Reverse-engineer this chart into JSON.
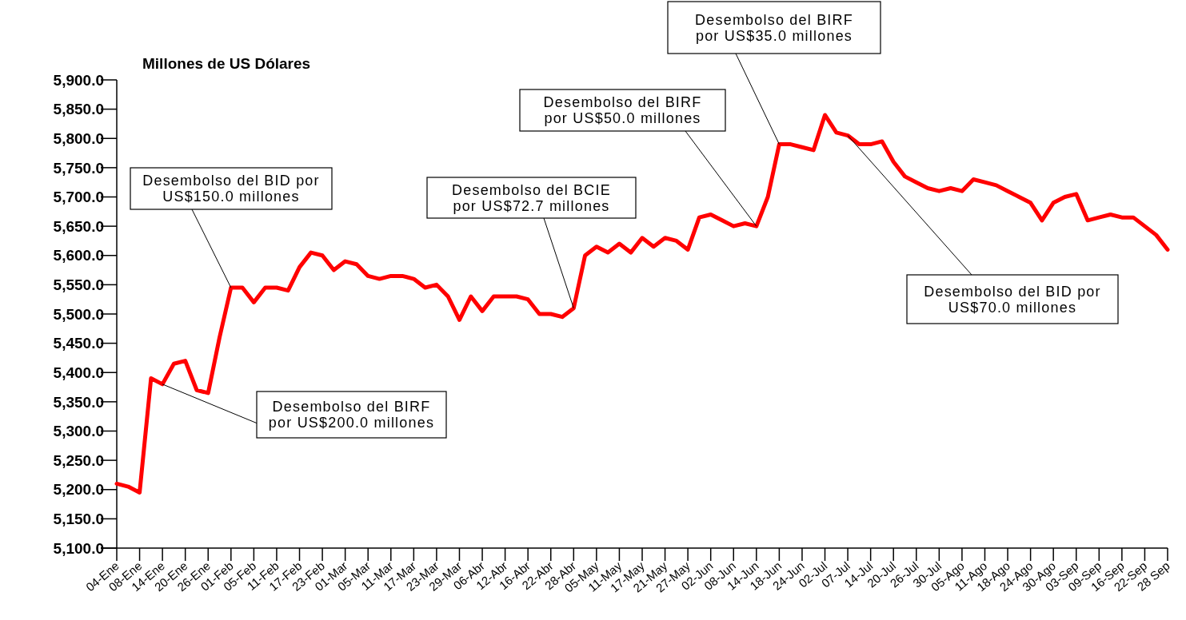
{
  "chart_data": {
    "type": "line",
    "ylabel": "Millones de US Dólares",
    "categories": [
      "04-Ene",
      null,
      "08-Ene",
      null,
      "14-Ene",
      null,
      "20-Ene",
      null,
      "26-Ene",
      null,
      "01-Feb",
      null,
      "05-Feb",
      null,
      "11-Feb",
      null,
      "17-Feb",
      null,
      "23-Feb",
      null,
      "01-Mar",
      null,
      "05-Mar",
      null,
      "11-Mar",
      null,
      "17-Mar",
      null,
      "23-Mar",
      null,
      "29-Mar",
      null,
      "06-Abr",
      null,
      "12-Abr",
      null,
      "16-Abr",
      null,
      "22-Abr",
      null,
      "28-Abr",
      null,
      "05-May",
      null,
      "11-May",
      null,
      "17-May",
      null,
      "21-May",
      null,
      "27-May",
      null,
      "02-Jun",
      null,
      "08-Jun",
      null,
      "14-Jun",
      null,
      "18-Jun",
      null,
      "24-Jun",
      null,
      "02-Jul",
      null,
      "07-Jul",
      null,
      "14-Jul",
      null,
      "20-Jul",
      null,
      "26-Jul",
      null,
      "30-Jul",
      null,
      "05-Ago",
      null,
      "11-Ago",
      null,
      "18-Ago",
      null,
      "24-Ago",
      null,
      "30-Ago",
      null,
      "03-Sep",
      null,
      "09-Sep",
      null,
      "16-Sep",
      null,
      "22-Sep",
      null,
      "28 Sep"
    ],
    "series": [
      {
        "color": "#ff0000",
        "values": [
          5210,
          5205,
          5195,
          5390,
          5380,
          5415,
          5420,
          5370,
          5365,
          5460,
          5545,
          5545,
          5520,
          5545,
          5545,
          5540,
          5580,
          5605,
          5600,
          5575,
          5590,
          5585,
          5565,
          5560,
          5565,
          5565,
          5560,
          5545,
          5550,
          5530,
          5490,
          5530,
          5505,
          5530,
          5530,
          5530,
          5525,
          5500,
          5500,
          5495,
          5510,
          5600,
          5615,
          5605,
          5620,
          5605,
          5630,
          5615,
          5630,
          5625,
          5610,
          5665,
          5670,
          5660,
          5650,
          5655,
          5650,
          5700,
          5790,
          5790,
          5785,
          5780,
          5840,
          5810,
          5805,
          5790,
          5790,
          5795,
          5760,
          5735,
          5725,
          5715,
          5710,
          5715,
          5710,
          5730,
          5725,
          5720,
          5710,
          5700,
          5690,
          5660,
          5690,
          5700,
          5705,
          5660,
          5665,
          5670,
          5665,
          5665,
          5650,
          5635,
          5610
        ]
      }
    ],
    "ylim": [
      5100,
      5900
    ],
    "yticks": [
      {
        "value": 5100,
        "label": "5,100.0"
      },
      {
        "value": 5150,
        "label": "5,150.0"
      },
      {
        "value": 5200,
        "label": "5,200.0"
      },
      {
        "value": 5250,
        "label": "5,250.0"
      },
      {
        "value": 5300,
        "label": "5,300.0"
      },
      {
        "value": 5350,
        "label": "5,350.0"
      },
      {
        "value": 5400,
        "label": "5,400.0"
      },
      {
        "value": 5450,
        "label": "5,450.0"
      },
      {
        "value": 5500,
        "label": "5,500.0"
      },
      {
        "value": 5550,
        "label": "5,550.0"
      },
      {
        "value": 5600,
        "label": "5,600.0"
      },
      {
        "value": 5650,
        "label": "5,650.0"
      },
      {
        "value": 5700,
        "label": "5,700.0"
      },
      {
        "value": 5750,
        "label": "5,750.0"
      },
      {
        "value": 5800,
        "label": "5,800.0"
      },
      {
        "value": 5850,
        "label": "5,850.0"
      },
      {
        "value": 5900,
        "label": "5,900.0"
      }
    ],
    "annotations": [
      {
        "text": "Desembolso del BID por\nUS$150.0 millones",
        "x": "01-Feb",
        "y": 5545
      },
      {
        "text": "Desembolso del BIRF\npor US$200.0 millones",
        "x": "14-Ene",
        "y": 5380
      },
      {
        "text": "Desembolso del BCIE\npor US$72.7 millones",
        "x": "28-Abr",
        "y": 5510
      },
      {
        "text": "Desembolso del BIRF\npor US$50.0 millones",
        "x": "14-Jun",
        "y": 5650
      },
      {
        "text": "Desembolso del BIRF\npor US$35.0 millones",
        "x": "18-Jun",
        "y": 5790
      },
      {
        "text": "Desembolso del BID por\nUS$70.0 millones",
        "x": "07-Jul",
        "y": 5805
      }
    ]
  }
}
